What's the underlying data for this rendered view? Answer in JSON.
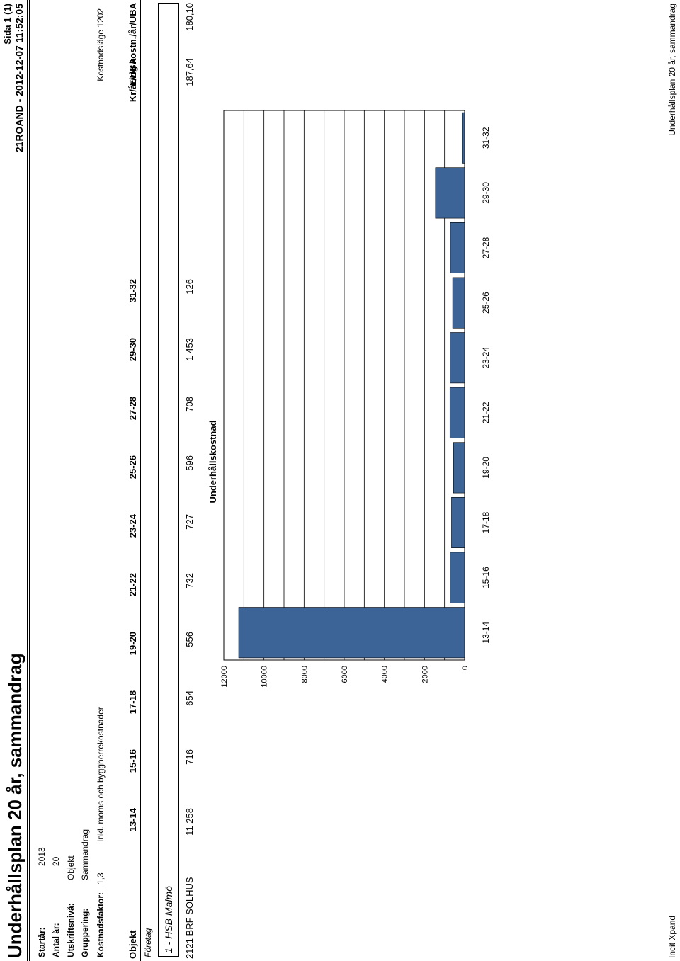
{
  "header": {
    "title": "Underhållsplan 20 år, sammandrag",
    "page": "Sida 1 (1)",
    "report_id": "21ROAND - 2012-12-07 11:52:05"
  },
  "params": {
    "startar_label": "Startår:",
    "startar_value": "2013",
    "antal_label": "Antal år:",
    "antal_value": "20",
    "utskrift_label": "Utskriftsnivå:",
    "utskrift_value": "Objekt",
    "gruppering_label": "Gruppering:",
    "gruppering_value": "Sammandrag",
    "kostnadsfaktor_label": "Kostnadsfaktor:",
    "kostnadsfaktor_value": "1,3",
    "moms_text": "Inkl. moms och byggherrekostnader",
    "kostnadslage": "Kostnadsläge 1202"
  },
  "table": {
    "objekt_header": "Objekt",
    "columns": [
      "13-14",
      "15-16",
      "17-18",
      "19-20",
      "21-22",
      "23-24",
      "25-26",
      "27-28",
      "29-30",
      "31-32",
      "Kr/år/UBA",
      "Evig kostn./år/UBA"
    ],
    "foretag_label": "Företag",
    "group_name": "1 - HSB Malmö",
    "row_name": "2121 BRF SOLHUS",
    "row_values": [
      "11 258",
      "716",
      "654",
      "556",
      "732",
      "727",
      "596",
      "708",
      "1 453",
      "126",
      "187,64",
      "180,10"
    ]
  },
  "chart_data": {
    "type": "bar",
    "title": "Underhållskostnad",
    "categories": [
      "13-14",
      "15-16",
      "17-18",
      "19-20",
      "21-22",
      "23-24",
      "25-26",
      "27-28",
      "29-30",
      "31-32"
    ],
    "values": [
      11258,
      716,
      654,
      556,
      732,
      727,
      596,
      708,
      1453,
      126
    ],
    "ylim": [
      0,
      12000
    ],
    "yticks": [
      "0",
      "2000",
      "4000",
      "6000",
      "8000",
      "10000",
      "12000"
    ],
    "grid": true,
    "bar_color": "#3d6496"
  },
  "footer": {
    "left": "Incit Xpand",
    "right": "Underhållsplan 20 år, sammandrag"
  }
}
